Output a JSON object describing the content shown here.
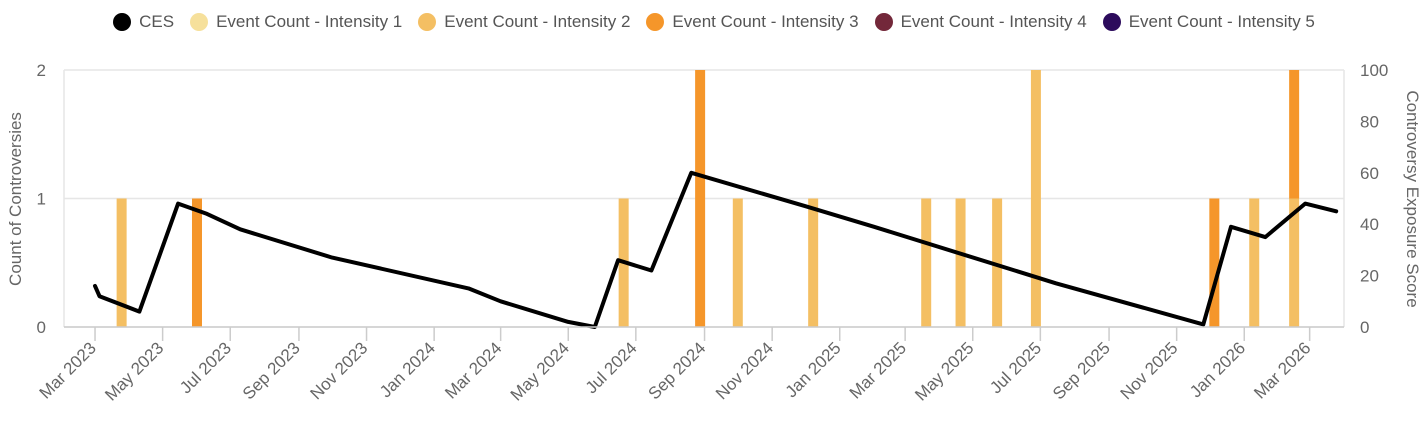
{
  "chart_data": {
    "type": "bar",
    "legend": [
      {
        "name": "CES",
        "color": "#000000"
      },
      {
        "name": "Event Count - Intensity 1",
        "color": "#f6e09b"
      },
      {
        "name": "Event Count - Intensity 2",
        "color": "#f4bf63"
      },
      {
        "name": "Event Count - Intensity 3",
        "color": "#f5962a"
      },
      {
        "name": "Event Count - Intensity 4",
        "color": "#73283a"
      },
      {
        "name": "Event Count - Intensity 5",
        "color": "#2c0b5c"
      }
    ],
    "x_range": [
      "2023-02-01",
      "2026-04-01"
    ],
    "x_tick_labels": [
      "Mar 2023",
      "May 2023",
      "Jul 2023",
      "Sep 2023",
      "Nov 2023",
      "Jan 2024",
      "Mar 2024",
      "May 2024",
      "Jul 2024",
      "Sep 2024",
      "Nov 2024",
      "Jan 2025",
      "Mar 2025",
      "May 2025",
      "Jul 2025",
      "Sep 2025",
      "Nov 2025",
      "Jan 2026",
      "Mar 2026"
    ],
    "y_left": {
      "label": "Count of Controversies",
      "range": [
        0,
        2
      ],
      "ticks": [
        "0",
        "1",
        "2"
      ]
    },
    "y_right": {
      "label": "Controversy Exposure Score",
      "range": [
        0,
        100
      ],
      "ticks": [
        "0",
        "20",
        "40",
        "60",
        "80",
        "100"
      ]
    },
    "bars": [
      {
        "date": "2023-03-25",
        "series": "Event Count - Intensity 2",
        "value": 1
      },
      {
        "date": "2023-06-01",
        "series": "Event Count - Intensity 3",
        "value": 1
      },
      {
        "date": "2024-06-20",
        "series": "Event Count - Intensity 2",
        "value": 1
      },
      {
        "date": "2024-08-28",
        "series": "Event Count - Intensity 3",
        "value": 2
      },
      {
        "date": "2024-10-01",
        "series": "Event Count - Intensity 2",
        "value": 1
      },
      {
        "date": "2024-12-08",
        "series": "Event Count - Intensity 2",
        "value": 1
      },
      {
        "date": "2025-03-20",
        "series": "Event Count - Intensity 2",
        "value": 1
      },
      {
        "date": "2025-04-20",
        "series": "Event Count - Intensity 2",
        "value": 1
      },
      {
        "date": "2025-05-23",
        "series": "Event Count - Intensity 2",
        "value": 1
      },
      {
        "date": "2025-06-27",
        "series": "Event Count - Intensity 2",
        "value": 2
      },
      {
        "date": "2025-12-05",
        "series": "Event Count - Intensity 3",
        "value": 1
      },
      {
        "date": "2026-01-10",
        "series": "Event Count - Intensity 2",
        "value": 1
      },
      {
        "date": "2026-02-15",
        "series": "Event Count - Intensity 2",
        "value": 1
      },
      {
        "date": "2026-02-15",
        "series": "Event Count - Intensity 3",
        "value": 1
      }
    ],
    "ces_line": [
      {
        "date": "2023-03-01",
        "value": 16
      },
      {
        "date": "2023-03-05",
        "value": 12
      },
      {
        "date": "2023-04-10",
        "value": 6
      },
      {
        "date": "2023-05-15",
        "value": 48
      },
      {
        "date": "2023-06-10",
        "value": 44
      },
      {
        "date": "2023-07-10",
        "value": 38
      },
      {
        "date": "2023-10-01",
        "value": 27
      },
      {
        "date": "2024-02-01",
        "value": 15
      },
      {
        "date": "2024-03-01",
        "value": 10
      },
      {
        "date": "2024-05-01",
        "value": 2
      },
      {
        "date": "2024-05-25",
        "value": 0
      },
      {
        "date": "2024-06-15",
        "value": 26
      },
      {
        "date": "2024-07-15",
        "value": 22
      },
      {
        "date": "2024-08-20",
        "value": 60
      },
      {
        "date": "2024-12-01",
        "value": 47
      },
      {
        "date": "2025-02-01",
        "value": 39
      },
      {
        "date": "2025-07-15",
        "value": 17
      },
      {
        "date": "2025-11-25",
        "value": 1
      },
      {
        "date": "2025-12-20",
        "value": 39
      },
      {
        "date": "2026-01-20",
        "value": 35
      },
      {
        "date": "2026-02-25",
        "value": 48
      },
      {
        "date": "2026-03-25",
        "value": 45
      }
    ]
  }
}
